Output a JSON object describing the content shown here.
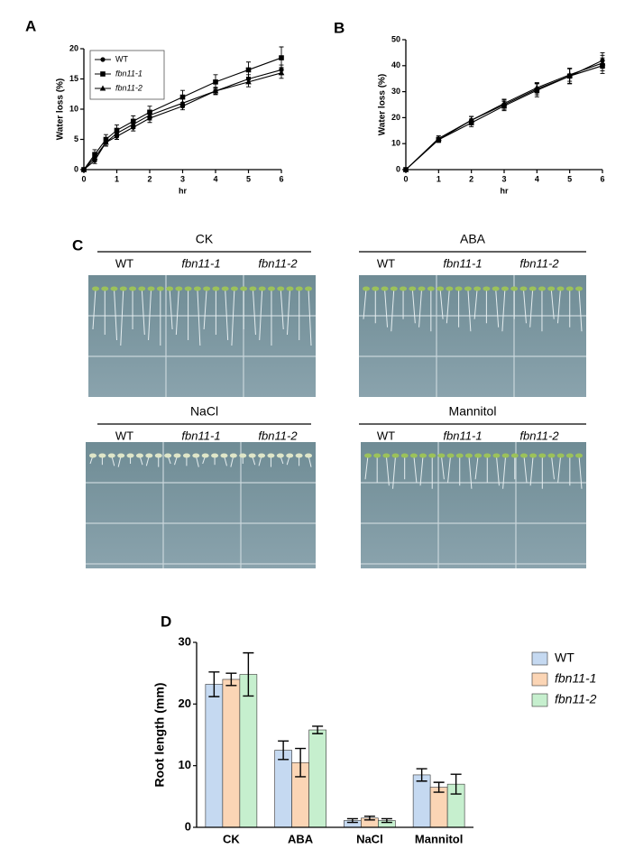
{
  "chart_data": [
    {
      "type": "line",
      "panel_label": "A",
      "ylabel": "Water loss (%)",
      "xlabel": "hr",
      "x": [
        0,
        0.33,
        0.67,
        1,
        1.5,
        2,
        3,
        4,
        5,
        6
      ],
      "xlim": [
        0,
        6
      ],
      "xticks": [
        0,
        1,
        2,
        3,
        4,
        5,
        6
      ],
      "ylim": [
        0,
        20
      ],
      "yticks": [
        0,
        5,
        10,
        15,
        20
      ],
      "legend": true,
      "series": [
        {
          "name": "WT",
          "color": "#000000",
          "marker": "circle",
          "values": [
            0,
            1.5,
            4.5,
            5.5,
            7,
            8.5,
            10.5,
            13,
            15,
            16.5
          ],
          "errors": [
            0,
            0.5,
            0.6,
            0.5,
            0.6,
            0.7,
            0.6,
            0.5,
            0.7,
            0.8
          ]
        },
        {
          "name": "fbn11-1",
          "color": "#000000",
          "marker": "square",
          "values": [
            0,
            2.5,
            5,
            6.5,
            8,
            9.5,
            12,
            14.5,
            16.5,
            18.5
          ],
          "errors": [
            0,
            0.8,
            0.8,
            0.9,
            0.9,
            1,
            1.1,
            1.2,
            1.3,
            1.8
          ]
        },
        {
          "name": "fbn11-2",
          "color": "#000000",
          "marker": "triangle",
          "values": [
            0,
            2,
            4.5,
            6,
            7.5,
            9,
            11,
            13,
            14.5,
            16
          ],
          "errors": [
            0,
            0.6,
            0.6,
            0.6,
            0.7,
            0.8,
            0.7,
            0.6,
            0.8,
            0.9
          ]
        }
      ]
    },
    {
      "type": "line",
      "panel_label": "B",
      "ylabel": "Water loss (%)",
      "xlabel": "hr",
      "x": [
        0,
        1,
        2,
        3,
        4,
        5,
        6
      ],
      "xlim": [
        0,
        6
      ],
      "xticks": [
        0,
        1,
        2,
        3,
        4,
        5,
        6
      ],
      "ylim": [
        0,
        50
      ],
      "yticks": [
        0,
        10,
        20,
        30,
        40,
        50
      ],
      "legend": false,
      "series": [
        {
          "color": "#000000",
          "marker": "circle",
          "values": [
            0,
            11.5,
            19,
            25,
            31,
            36,
            42
          ],
          "errors": [
            0,
            1,
            1.5,
            1.8,
            2.2,
            2.8,
            3
          ]
        },
        {
          "color": "#000000",
          "marker": "square",
          "values": [
            0,
            11.5,
            18,
            24.5,
            30.5,
            36,
            40
          ],
          "errors": [
            0,
            1,
            1.5,
            1.8,
            2.5,
            3,
            3
          ]
        },
        {
          "color": "#000000",
          "marker": "triangle",
          "values": [
            0,
            12,
            19,
            25.5,
            31.5,
            36.5,
            41
          ],
          "errors": [
            0,
            1,
            1.4,
            1.6,
            2,
            2.5,
            3
          ]
        }
      ]
    },
    {
      "type": "bar",
      "panel_label": "D",
      "ylabel": "Root length (mm)",
      "categories": [
        "CK",
        "ABA",
        "NaCl",
        "Mannitol"
      ],
      "ylim": [
        0,
        30
      ],
      "yticks": [
        0,
        10,
        20,
        30
      ],
      "legend": true,
      "series": [
        {
          "name": "WT",
          "color": "#c5d9f1",
          "values": [
            23.2,
            12.5,
            1.1,
            8.5
          ],
          "errors": [
            2,
            1.5,
            0.3,
            1
          ]
        },
        {
          "name": "fbn11-1",
          "color": "#fbd5b5",
          "values": [
            24,
            10.5,
            1.5,
            6.5
          ],
          "errors": [
            1,
            2.3,
            0.3,
            0.8
          ]
        },
        {
          "name": "fbn11-2",
          "color": "#c6efce",
          "values": [
            24.8,
            15.8,
            1.1,
            7
          ],
          "errors": [
            3.5,
            0.6,
            0.3,
            1.6
          ]
        }
      ]
    }
  ],
  "photo_panel": {
    "panel_label": "C",
    "plates": [
      {
        "treatment": "CK",
        "genotypes": [
          "WT",
          "fbn11-1",
          "fbn11-2"
        ]
      },
      {
        "treatment": "ABA",
        "genotypes": [
          "WT",
          "fbn11-1",
          "fbn11-2"
        ]
      },
      {
        "treatment": "NaCl",
        "genotypes": [
          "WT",
          "fbn11-1",
          "fbn11-2"
        ]
      },
      {
        "treatment": "Mannitol",
        "genotypes": [
          "WT",
          "fbn11-1",
          "fbn11-2"
        ]
      }
    ]
  }
}
